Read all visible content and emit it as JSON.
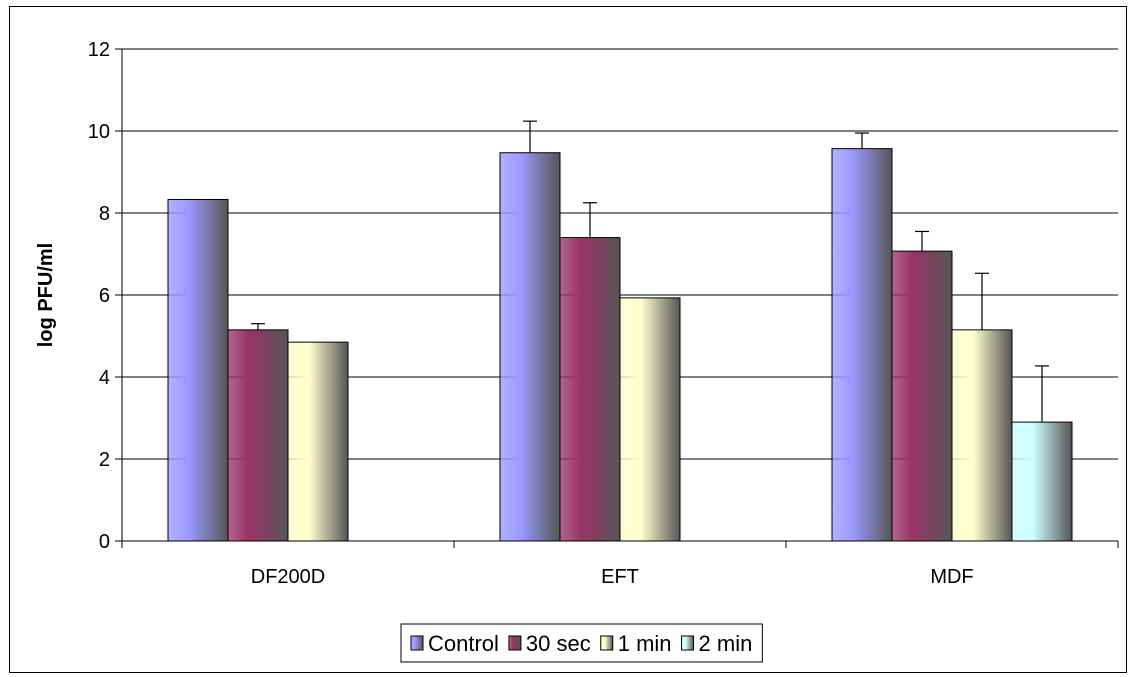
{
  "chart_data": {
    "type": "bar",
    "title": "",
    "xlabel": "",
    "ylabel": "log PFU/ml",
    "ylim": [
      0,
      12
    ],
    "yticks": [
      "0",
      "2",
      "4",
      "6",
      "8",
      "10",
      "12"
    ],
    "grid": true,
    "legend_position": "bottom",
    "categories": [
      "DF200D",
      "EFT",
      "MDF"
    ],
    "series": [
      {
        "name": "Control",
        "values": [
          8.33,
          9.47,
          9.57
        ],
        "errors": [
          0,
          0.77,
          0.38
        ],
        "color": "#9999ff"
      },
      {
        "name": "30 sec",
        "values": [
          5.15,
          7.4,
          7.07
        ],
        "errors": [
          0.15,
          0.85,
          0.48
        ],
        "color": "#993366"
      },
      {
        "name": "1 min",
        "values": [
          4.85,
          5.93,
          5.15
        ],
        "errors": [
          0,
          0,
          1.38
        ],
        "color": "#ffffcc"
      },
      {
        "name": "2 min",
        "values": [
          0,
          0,
          2.9
        ],
        "errors": [
          0,
          0,
          1.37
        ],
        "color": "#ccffff"
      }
    ]
  }
}
